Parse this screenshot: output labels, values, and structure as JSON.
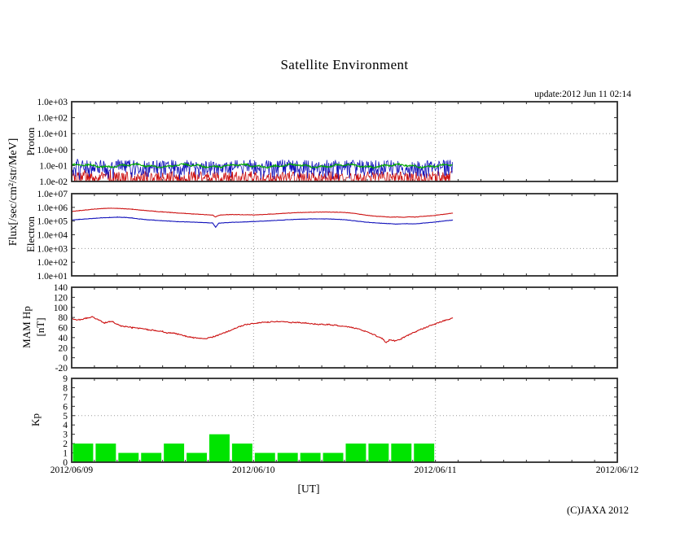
{
  "title": "Satellite Environment",
  "update_text": "update:2012 Jun 11 02:14",
  "copyright": "(C)JAXA 2012",
  "axis_titles": {
    "flux": "Flux[/sec/cm²/str/MeV]",
    "proton": "Proton",
    "electron": "Electron",
    "mam_1": "MAM Hp",
    "mam_2": "[nT]",
    "kp": "Kp"
  },
  "xaxis": {
    "label": "[UT]",
    "range_hours": [
      0,
      72
    ],
    "tick_hours": [
      0,
      24,
      48,
      72
    ],
    "tick_labels": [
      "2012/06/09",
      "2012/06/10",
      "2012/06/11",
      "2012/06/12"
    ],
    "gridline_hours": [
      24,
      48
    ],
    "minor_tick_hours": 3
  },
  "colors": {
    "red_line": "#cc1111",
    "blue_line": "#1111bb",
    "green_line": "#00a800",
    "kp_bar": "#00e400",
    "grid": "#9a9a9a",
    "frame": "#2b2b2b"
  },
  "chart_data": [
    {
      "name": "proton",
      "type": "line",
      "y_scale": "log10",
      "ylim": [
        -2,
        3
      ],
      "yticks": [
        {
          "v": 3,
          "label": "1.0e+03"
        },
        {
          "v": 2,
          "label": "1.0e+02"
        },
        {
          "v": 1,
          "label": "1.0e+01"
        },
        {
          "v": 0,
          "label": "1.0e+00"
        },
        {
          "v": -1,
          "label": "1.0e-01"
        },
        {
          "v": -2,
          "label": "1.0e-02"
        }
      ],
      "threshold": 1,
      "data_end_hour": 50.3,
      "series": [
        {
          "name": "proton-red",
          "color": "#cc1111",
          "render": "noise",
          "min": -2.35,
          "max": -1.35,
          "bias": 0.8
        },
        {
          "name": "proton-blue",
          "color": "#1111bb",
          "render": "noise",
          "min": -1.95,
          "max": -0.65,
          "bias": 0.55
        },
        {
          "name": "proton-green",
          "color": "#00a800",
          "render": "wiggle",
          "center": -1.02,
          "slow_amp": 0.07,
          "jitter": 0.05
        }
      ]
    },
    {
      "name": "electron",
      "type": "line",
      "y_scale": "log10",
      "ylim": [
        1,
        7
      ],
      "yticks": [
        {
          "v": 7,
          "label": "1.0e+07"
        },
        {
          "v": 6,
          "label": "1.0e+06"
        },
        {
          "v": 5,
          "label": "1.0e+05"
        },
        {
          "v": 4,
          "label": "1.0e+04"
        },
        {
          "v": 3,
          "label": "1.0e+03"
        },
        {
          "v": 2,
          "label": "1.0e+02"
        },
        {
          "v": 1,
          "label": "1.0e+01"
        }
      ],
      "threshold": 3,
      "data_end_hour": 50.3,
      "series": [
        {
          "name": "electron-red",
          "color": "#cc1111",
          "render": "points",
          "jitter": 0.013,
          "points": [
            [
              0,
              5.7
            ],
            [
              1,
              5.76
            ],
            [
              2,
              5.82
            ],
            [
              3,
              5.87
            ],
            [
              4,
              5.91
            ],
            [
              5,
              5.94
            ],
            [
              6,
              5.93
            ],
            [
              7,
              5.9
            ],
            [
              8,
              5.86
            ],
            [
              9,
              5.81
            ],
            [
              10,
              5.76
            ],
            [
              11,
              5.71
            ],
            [
              12,
              5.67
            ],
            [
              13,
              5.63
            ],
            [
              14,
              5.59
            ],
            [
              15,
              5.56
            ],
            [
              16,
              5.52
            ],
            [
              17,
              5.49
            ],
            [
              18,
              5.46
            ],
            [
              18.6,
              5.43
            ],
            [
              19,
              5.3
            ],
            [
              19.4,
              5.42
            ],
            [
              20,
              5.46
            ],
            [
              21,
              5.48
            ],
            [
              22,
              5.47
            ],
            [
              23,
              5.46
            ],
            [
              24,
              5.45
            ],
            [
              25,
              5.47
            ],
            [
              26,
              5.5
            ],
            [
              27,
              5.53
            ],
            [
              28,
              5.56
            ],
            [
              29,
              5.59
            ],
            [
              30,
              5.62
            ],
            [
              31,
              5.64
            ],
            [
              32,
              5.65
            ],
            [
              33,
              5.66
            ],
            [
              34,
              5.66
            ],
            [
              35,
              5.65
            ],
            [
              36,
              5.63
            ],
            [
              37,
              5.58
            ],
            [
              38,
              5.5
            ],
            [
              39,
              5.42
            ],
            [
              40,
              5.36
            ],
            [
              41,
              5.33
            ],
            [
              42,
              5.28
            ],
            [
              43,
              5.3
            ],
            [
              43.7,
              5.27
            ],
            [
              44.5,
              5.32
            ],
            [
              45.3,
              5.29
            ],
            [
              46,
              5.33
            ],
            [
              47,
              5.37
            ],
            [
              48,
              5.42
            ],
            [
              49,
              5.49
            ],
            [
              50.3,
              5.58
            ]
          ]
        },
        {
          "name": "electron-blue",
          "color": "#1111bb",
          "render": "points",
          "jitter": 0.013,
          "points": [
            [
              0,
              5.08
            ],
            [
              1,
              5.12
            ],
            [
              2,
              5.16
            ],
            [
              3,
              5.2
            ],
            [
              4,
              5.24
            ],
            [
              5,
              5.26
            ],
            [
              6,
              5.28
            ],
            [
              7,
              5.27
            ],
            [
              8,
              5.22
            ],
            [
              9,
              5.15
            ],
            [
              10,
              5.1
            ],
            [
              11,
              5.06
            ],
            [
              12,
              5.02
            ],
            [
              13,
              4.99
            ],
            [
              14,
              4.96
            ],
            [
              15,
              4.94
            ],
            [
              16,
              4.92
            ],
            [
              17,
              4.9
            ],
            [
              18,
              4.88
            ],
            [
              18.6,
              4.86
            ],
            [
              19,
              4.55
            ],
            [
              19.4,
              4.84
            ],
            [
              20,
              4.87
            ],
            [
              21,
              4.9
            ],
            [
              22,
              4.92
            ],
            [
              23,
              4.94
            ],
            [
              24,
              4.96
            ],
            [
              25,
              4.99
            ],
            [
              26,
              5.02
            ],
            [
              27,
              5.05
            ],
            [
              28,
              5.08
            ],
            [
              29,
              5.11
            ],
            [
              30,
              5.13
            ],
            [
              31,
              5.15
            ],
            [
              32,
              5.16
            ],
            [
              33,
              5.16
            ],
            [
              34,
              5.15
            ],
            [
              35,
              5.13
            ],
            [
              36,
              5.1
            ],
            [
              37,
              5.04
            ],
            [
              38,
              4.97
            ],
            [
              39,
              4.91
            ],
            [
              40,
              4.87
            ],
            [
              41,
              4.84
            ],
            [
              42,
              4.81
            ],
            [
              43,
              4.78
            ],
            [
              44,
              4.81
            ],
            [
              45,
              4.79
            ],
            [
              46,
              4.83
            ],
            [
              47,
              4.88
            ],
            [
              48,
              4.93
            ],
            [
              49,
              5.0
            ],
            [
              50.3,
              5.07
            ]
          ]
        }
      ]
    },
    {
      "name": "mam_hp",
      "type": "line",
      "y_scale": "linear",
      "ylim": [
        -20,
        140
      ],
      "yticks": [
        {
          "v": 140,
          "label": "140"
        },
        {
          "v": 120,
          "label": "120"
        },
        {
          "v": 100,
          "label": "100"
        },
        {
          "v": 80,
          "label": "80"
        },
        {
          "v": 60,
          "label": "60"
        },
        {
          "v": 40,
          "label": "40"
        },
        {
          "v": 20,
          "label": "20"
        },
        {
          "v": 0,
          "label": "0"
        },
        {
          "v": -20,
          "label": "-20"
        }
      ],
      "threshold": null,
      "data_end_hour": 50.3,
      "series": [
        {
          "name": "mam-hp-red",
          "color": "#cc1111",
          "render": "points",
          "jitter": 1.1,
          "points": [
            [
              0,
              77
            ],
            [
              1,
              75
            ],
            [
              2,
              79
            ],
            [
              2.7,
              81
            ],
            [
              3.5,
              76
            ],
            [
              4.3,
              69
            ],
            [
              5,
              72
            ],
            [
              5.5,
              71
            ],
            [
              6,
              66
            ],
            [
              6.5,
              63
            ],
            [
              7,
              62
            ],
            [
              8,
              60
            ],
            [
              9,
              58
            ],
            [
              10,
              56
            ],
            [
              11,
              54
            ],
            [
              12,
              52
            ],
            [
              12.5,
              49
            ],
            [
              13,
              50
            ],
            [
              14,
              47
            ],
            [
              15,
              43
            ],
            [
              16,
              40
            ],
            [
              17,
              38
            ],
            [
              17.5,
              37
            ],
            [
              18,
              39
            ],
            [
              19,
              43
            ],
            [
              20,
              49
            ],
            [
              21,
              55
            ],
            [
              22,
              61
            ],
            [
              23,
              66
            ],
            [
              24,
              68
            ],
            [
              25,
              70
            ],
            [
              26,
              71
            ],
            [
              27,
              72
            ],
            [
              28,
              71
            ],
            [
              29,
              70
            ],
            [
              30,
              70
            ],
            [
              31,
              69
            ],
            [
              32,
              67
            ],
            [
              33,
              66
            ],
            [
              34,
              66
            ],
            [
              35,
              64
            ],
            [
              36,
              62
            ],
            [
              37,
              60
            ],
            [
              38,
              56
            ],
            [
              39,
              51
            ],
            [
              40,
              45
            ],
            [
              41,
              38
            ],
            [
              41.5,
              30
            ],
            [
              42,
              36
            ],
            [
              42.7,
              33
            ],
            [
              43.3,
              36
            ],
            [
              44,
              42
            ],
            [
              45,
              49
            ],
            [
              46,
              56
            ],
            [
              47,
              62
            ],
            [
              48,
              67
            ],
            [
              49,
              73
            ],
            [
              49.7,
              76
            ],
            [
              50.3,
              79
            ]
          ]
        }
      ]
    },
    {
      "name": "kp",
      "type": "bar",
      "y_scale": "linear",
      "ylim": [
        0,
        9
      ],
      "yticks": [
        {
          "v": 9,
          "label": "9"
        },
        {
          "v": 8,
          "label": "8"
        },
        {
          "v": 7,
          "label": "7"
        },
        {
          "v": 6,
          "label": "6"
        },
        {
          "v": 5,
          "label": "5"
        },
        {
          "v": 4,
          "label": "4"
        },
        {
          "v": 3,
          "label": "3"
        },
        {
          "v": 2,
          "label": "2"
        },
        {
          "v": 1,
          "label": "1"
        },
        {
          "v": 0,
          "label": "0"
        }
      ],
      "threshold": 5,
      "data_end_hour": 48,
      "bars": {
        "interval_hours": 3,
        "start_hour": 0,
        "color": "#00e400",
        "values": [
          2,
          2,
          1,
          1,
          2,
          1,
          3,
          2,
          1,
          1,
          1,
          1,
          2,
          2,
          2,
          2
        ]
      }
    }
  ]
}
